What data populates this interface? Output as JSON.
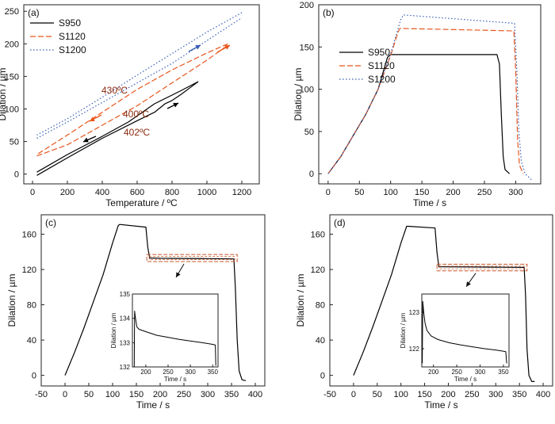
{
  "colors": {
    "S950": "#000000",
    "S1120": "#E8551C",
    "S1200": "#3A5FB8",
    "annotation": "#8B2A0E",
    "box": "#C8572A"
  },
  "chart_data": [
    {
      "panel": "(a)",
      "type": "line",
      "xlabel": "Temperature / ºC",
      "ylabel": "Dilation / µm",
      "xlim": [
        -50,
        1300
      ],
      "ylim": [
        -15,
        260
      ],
      "xticks": [
        "0",
        "200",
        "400",
        "600",
        "800",
        "1000",
        "1200"
      ],
      "yticks": [
        "0",
        "50",
        "100",
        "150",
        "200",
        "250"
      ],
      "legend_position": "top-left",
      "series": [
        {
          "name": "S950",
          "style": "solid",
          "heating": [
            [
              25,
              -2
            ],
            [
              200,
              25
            ],
            [
              400,
              55
            ],
            [
              600,
              82
            ],
            [
              700,
              95
            ],
            [
              760,
              108
            ],
            [
              800,
              113
            ],
            [
              850,
              122
            ],
            [
              900,
              132
            ],
            [
              950,
              142
            ]
          ],
          "cooling": [
            [
              950,
              142
            ],
            [
              850,
              128
            ],
            [
              700,
              108
            ],
            [
              550,
              80
            ],
            [
              400,
              58
            ],
            [
              200,
              30
            ],
            [
              25,
              3
            ]
          ]
        },
        {
          "name": "S1120",
          "style": "dashed",
          "heating": [
            [
              25,
              28
            ],
            [
              200,
              45
            ],
            [
              400,
              75
            ],
            [
              600,
              105
            ],
            [
              800,
              140
            ],
            [
              1000,
              175
            ],
            [
              1120,
              198
            ]
          ],
          "cooling": [
            [
              1120,
              200
            ],
            [
              1000,
              186
            ],
            [
              800,
              160
            ],
            [
              600,
              130
            ],
            [
              400,
              95
            ],
            [
              200,
              60
            ],
            [
              25,
              30
            ]
          ]
        },
        {
          "name": "S1200",
          "style": "dotted",
          "heating": [
            [
              25,
              55
            ],
            [
              200,
              80
            ],
            [
              400,
              110
            ],
            [
              600,
              140
            ],
            [
              800,
              170
            ],
            [
              1000,
              205
            ],
            [
              1200,
              240
            ]
          ],
          "cooling": [
            [
              1200,
              248
            ],
            [
              1000,
              218
            ],
            [
              800,
              185
            ],
            [
              600,
              152
            ],
            [
              400,
              118
            ],
            [
              200,
              85
            ],
            [
              25,
              60
            ]
          ]
        }
      ],
      "annotations": [
        {
          "text": "430ºC",
          "x": 430,
          "y": 120
        },
        {
          "text": "400ºC",
          "x": 400,
          "y": 68
        },
        {
          "text": "402ºC",
          "x": 402,
          "y": 40
        }
      ]
    },
    {
      "panel": "(b)",
      "type": "line",
      "xlabel": "Time / s",
      "ylabel": "Dilation / µm",
      "xlim": [
        -15,
        340
      ],
      "ylim": [
        -12,
        200
      ],
      "xticks": [
        "0",
        "50",
        "100",
        "150",
        "200",
        "250",
        "300"
      ],
      "yticks": [
        "0",
        "50",
        "100",
        "150",
        "200"
      ],
      "legend_position": "top-left",
      "series": [
        {
          "name": "S950",
          "style": "solid",
          "points": [
            [
              0,
              0
            ],
            [
              20,
              20
            ],
            [
              40,
              45
            ],
            [
              60,
              70
            ],
            [
              80,
              100
            ],
            [
              95,
              138
            ],
            [
              100,
              141
            ],
            [
              270,
              141
            ],
            [
              274,
              130
            ],
            [
              277,
              70
            ],
            [
              280,
              20
            ],
            [
              283,
              5
            ],
            [
              290,
              0
            ]
          ]
        },
        {
          "name": "S1120",
          "style": "dashed",
          "points": [
            [
              0,
              0
            ],
            [
              20,
              20
            ],
            [
              40,
              45
            ],
            [
              60,
              70
            ],
            [
              80,
              100
            ],
            [
              100,
              140
            ],
            [
              112,
              168
            ],
            [
              115,
              172
            ],
            [
              297,
              169
            ],
            [
              300,
              120
            ],
            [
              303,
              40
            ],
            [
              306,
              10
            ],
            [
              312,
              0
            ]
          ]
        },
        {
          "name": "S1200",
          "style": "dotted",
          "points": [
            [
              0,
              0
            ],
            [
              20,
              20
            ],
            [
              40,
              45
            ],
            [
              60,
              70
            ],
            [
              80,
              100
            ],
            [
              100,
              142
            ],
            [
              116,
              182
            ],
            [
              120,
              188
            ],
            [
              298,
              178
            ],
            [
              302,
              120
            ],
            [
              305,
              50
            ],
            [
              309,
              15
            ],
            [
              315,
              0
            ],
            [
              325,
              -7
            ]
          ]
        }
      ]
    },
    {
      "panel": "(c)",
      "type": "line",
      "xlabel": "Time / s",
      "ylabel": "Dilation / µm",
      "xlim": [
        -50,
        420
      ],
      "ylim": [
        -12,
        182
      ],
      "xticks": [
        "-50",
        "0",
        "50",
        "100",
        "150",
        "200",
        "250",
        "300",
        "350",
        "400"
      ],
      "yticks": [
        "0",
        "40",
        "80",
        "120",
        "160"
      ],
      "series": [
        {
          "name": "",
          "style": "solid",
          "points": [
            [
              0,
              0
            ],
            [
              20,
              26
            ],
            [
              40,
              54
            ],
            [
              60,
              84
            ],
            [
              80,
              114
            ],
            [
              100,
              150
            ],
            [
              112,
              170
            ],
            [
              115,
              171
            ],
            [
              170,
              168
            ],
            [
              174,
              145
            ],
            [
              178,
              133
            ],
            [
              185,
              133
            ],
            [
              200,
              132.7
            ],
            [
              250,
              132.5
            ],
            [
              300,
              132.3
            ],
            [
              355,
              132.0
            ],
            [
              358,
              100
            ],
            [
              362,
              40
            ],
            [
              366,
              5
            ],
            [
              372,
              -5
            ],
            [
              380,
              -6
            ]
          ]
        }
      ],
      "highlight_box": {
        "x": [
          172,
          362
        ],
        "y": [
          129,
          137
        ]
      },
      "inset": {
        "xlabel": "Time / s",
        "ylabel": "Dilation / µm",
        "xlim": [
          170,
          362
        ],
        "ylim": [
          132,
          135
        ],
        "xticks": [
          "200",
          "250",
          "300",
          "350"
        ],
        "yticks": [
          "132",
          "133",
          "134",
          "135"
        ],
        "points": [
          [
            174,
            132
          ],
          [
            175,
            134.3
          ],
          [
            177,
            134.0
          ],
          [
            180,
            133.65
          ],
          [
            185,
            133.55
          ],
          [
            200,
            133.45
          ],
          [
            225,
            133.3
          ],
          [
            250,
            133.22
          ],
          [
            275,
            133.13
          ],
          [
            300,
            133.07
          ],
          [
            325,
            133.0
          ],
          [
            350,
            132.93
          ],
          [
            356,
            132.9
          ],
          [
            357,
            132.05
          ]
        ]
      }
    },
    {
      "panel": "(d)",
      "type": "line",
      "xlabel": "Time / s",
      "ylabel": "Dilation / µm",
      "xlim": [
        -50,
        420
      ],
      "ylim": [
        -12,
        182
      ],
      "xticks": [
        "-50",
        "0",
        "50",
        "100",
        "150",
        "200",
        "250",
        "300",
        "350",
        "400"
      ],
      "yticks": [
        "0",
        "40",
        "80",
        "120",
        "160"
      ],
      "series": [
        {
          "name": "",
          "style": "solid",
          "points": [
            [
              0,
              0
            ],
            [
              20,
              26
            ],
            [
              40,
              54
            ],
            [
              60,
              84
            ],
            [
              80,
              114
            ],
            [
              100,
              150
            ],
            [
              112,
              169
            ],
            [
              115,
              169
            ],
            [
              172,
              167
            ],
            [
              176,
              140
            ],
            [
              180,
              123
            ],
            [
              190,
              123
            ],
            [
              250,
              122.8
            ],
            [
              300,
              122.6
            ],
            [
              360,
              122.4
            ],
            [
              363,
              90
            ],
            [
              366,
              30
            ],
            [
              370,
              0
            ],
            [
              376,
              -7
            ],
            [
              382,
              -7
            ]
          ]
        }
      ],
      "highlight_box": {
        "x": [
          176,
          366
        ],
        "y": [
          118.5,
          126
        ]
      },
      "inset": {
        "xlabel": "Time / s",
        "ylabel": "Dilation / µm",
        "xlim": [
          175,
          362
        ],
        "ylim": [
          121.5,
          123.5
        ],
        "xticks": [
          "200",
          "250",
          "300",
          "350"
        ],
        "yticks": [
          "122",
          "123"
        ],
        "points": [
          [
            176,
            121.6
          ],
          [
            177,
            123.3
          ],
          [
            179,
            123.0
          ],
          [
            182,
            122.7
          ],
          [
            186,
            122.5
          ],
          [
            195,
            122.35
          ],
          [
            210,
            122.25
          ],
          [
            235,
            122.16
          ],
          [
            260,
            122.1
          ],
          [
            285,
            122.05
          ],
          [
            310,
            122.0
          ],
          [
            335,
            121.96
          ],
          [
            355,
            121.92
          ],
          [
            357,
            121.6
          ]
        ]
      }
    }
  ]
}
